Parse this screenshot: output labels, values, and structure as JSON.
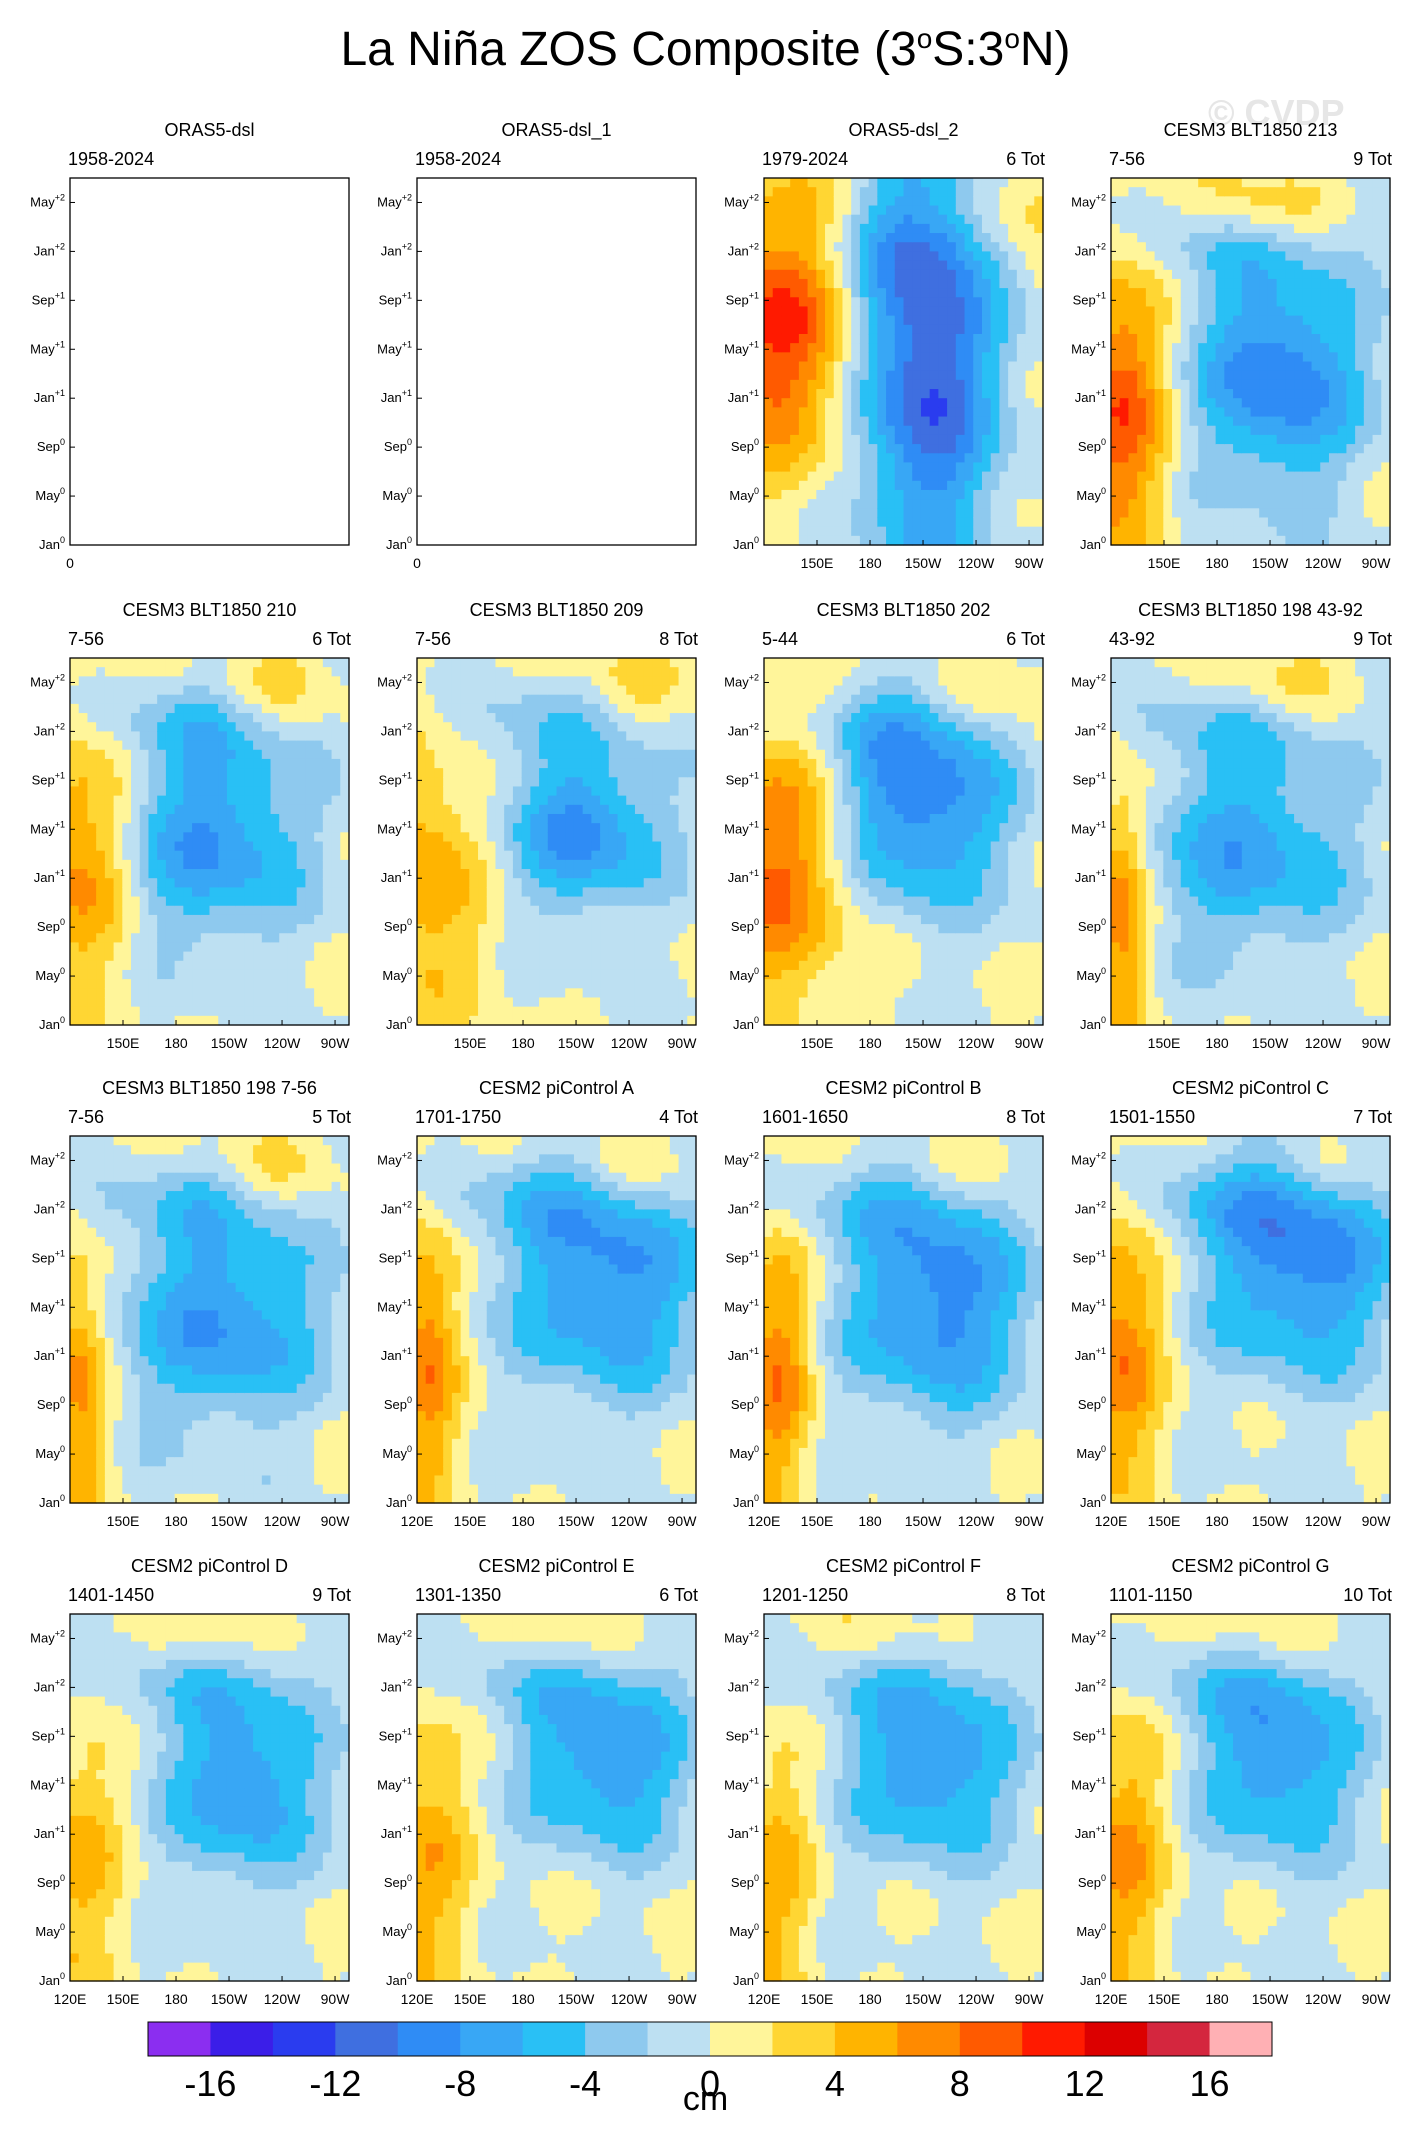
{
  "title": {
    "main": "La Niña ZOS Composite (3",
    "o1": "o",
    "mid": "S:3",
    "o2": "o",
    "end": "N)"
  },
  "watermark": "© CVDP",
  "chart_data": {
    "type": "heatmap",
    "variable": "ZOS",
    "units": "cm",
    "colorbar": {
      "labels": [
        "-16",
        "-12",
        "-8",
        "-4",
        "0",
        "4",
        "8",
        "12",
        "16"
      ],
      "colors": [
        "#8b2ef0",
        "#3b1ee8",
        "#2a3cef",
        "#3f6fe0",
        "#2f8cf5",
        "#38a7f5",
        "#29c0f5",
        "#8ec9ee",
        "#bde0f2",
        "#fff59a",
        "#ffd633",
        "#ffb400",
        "#ff8a00",
        "#ff5a00",
        "#ff1a00",
        "#dc0000",
        "#d4263e",
        "#ffb0b4"
      ],
      "label": "cm"
    },
    "y_ticks": [
      {
        "m": "Jan",
        "s": "0"
      },
      {
        "m": "May",
        "s": "0"
      },
      {
        "m": "Sep",
        "s": "0"
      },
      {
        "m": "Jan",
        "s": "+1"
      },
      {
        "m": "May",
        "s": "+1"
      },
      {
        "m": "Sep",
        "s": "+1"
      },
      {
        "m": "Jan",
        "s": "+2"
      },
      {
        "m": "May",
        "s": "+2"
      }
    ],
    "x_ticks_full": [
      "120E",
      "150E",
      "180",
      "150W",
      "120W",
      "90W"
    ],
    "x_ticks_partial": [
      "150E",
      "180",
      "150W",
      "120W",
      "90W"
    ],
    "x_ticks_empty": [
      "0"
    ],
    "panels": [
      {
        "name": "ORAS5-dsl",
        "period": "1958-2024",
        "count": "",
        "empty": true,
        "xt": "empty",
        "p": null
      },
      {
        "name": "ORAS5-dsl_1",
        "period": "1958-2024",
        "count": "",
        "empty": true,
        "xt": "empty",
        "p": null
      },
      {
        "name": "ORAS5-dsl_2",
        "period": "1979-2024",
        "count": "6 Tot",
        "empty": false,
        "xt": "partial",
        "p": [
          0.06,
          0.27,
          0.58,
          0.25,
          0.5,
          0.55,
          0.7,
          0.9,
          0.6,
          0.85
        ]
      },
      {
        "name": "CESM3 BLT1850 213",
        "period": "7-56",
        "count": "9 Tot",
        "empty": false,
        "xt": "partial",
        "p": [
          0.03,
          0.17,
          0.6,
          0.3,
          0.46,
          0.3,
          0.55,
          0.55,
          0.38,
          0.8
        ]
      },
      {
        "name": "CESM3 BLT1850 210",
        "period": "7-56",
        "count": "6 Tot",
        "empty": false,
        "xt": "partial",
        "p": [
          0.03,
          0.19,
          0.52,
          0.32,
          0.51,
          0.28,
          0.45,
          0.74,
          0.45,
          0.55
        ]
      },
      {
        "name": "CESM3 BLT1850 209",
        "period": "7-56",
        "count": "8 Tot",
        "empty": false,
        "xt": "partial",
        "p": [
          0.0,
          0.24,
          0.6,
          0.28,
          0.53,
          0.22,
          0.47,
          0.76,
          0.4,
          0.5
        ]
      },
      {
        "name": "CESM3 BLT1850 202",
        "period": "5-44",
        "count": "6 Tot",
        "empty": false,
        "xt": "partial",
        "p": [
          0.05,
          0.27,
          0.55,
          0.32,
          0.6,
          0.27,
          0.55,
          0.8,
          0.45,
          0.7
        ]
      },
      {
        "name": "CESM3 BLT1850 198 43-92",
        "period": "43-92",
        "count": "9 Tot",
        "empty": false,
        "xt": "partial",
        "p": [
          0.03,
          0.1,
          0.5,
          0.35,
          0.48,
          0.28,
          0.4,
          0.62,
          0.3,
          0.6
        ]
      },
      {
        "name": "CESM3 BLT1850 198 7-56",
        "period": "7-56",
        "count": "5 Tot",
        "empty": false,
        "xt": "partial",
        "p": [
          0.03,
          0.1,
          0.55,
          0.35,
          0.5,
          0.28,
          0.45,
          0.72,
          0.32,
          0.55
        ]
      },
      {
        "name": "CESM2 piControl A",
        "period": "1701-1750",
        "count": "4 Tot",
        "empty": false,
        "xt": "full",
        "p": [
          0.03,
          0.12,
          0.68,
          0.35,
          0.6,
          0.3,
          0.48,
          0.8,
          0.4,
          0.62
        ]
      },
      {
        "name": "CESM2 piControl B",
        "period": "1601-1650",
        "count": "8 Tot",
        "empty": false,
        "xt": "full",
        "p": [
          0.05,
          0.12,
          0.62,
          0.32,
          0.55,
          0.3,
          0.52,
          0.75,
          0.36,
          0.6
        ]
      },
      {
        "name": "CESM2 piControl C",
        "period": "1501-1550",
        "count": "7 Tot",
        "empty": false,
        "xt": "full",
        "p": [
          0.03,
          0.15,
          0.68,
          0.34,
          0.66,
          0.3,
          0.52,
          0.8,
          0.42,
          0.62
        ]
      },
      {
        "name": "CESM2 piControl D",
        "period": "1401-1450",
        "count": "9 Tot",
        "empty": false,
        "xt": "full",
        "p": [
          0.03,
          0.16,
          0.62,
          0.28,
          0.54,
          0.26,
          0.45,
          0.5,
          0.33,
          0.38
        ]
      },
      {
        "name": "CESM2 piControl E",
        "period": "1301-1350",
        "count": "6 Tot",
        "empty": false,
        "xt": "full",
        "p": [
          0.03,
          0.16,
          0.68,
          0.3,
          0.6,
          0.24,
          0.45,
          0.55,
          0.34,
          0.44
        ]
      },
      {
        "name": "CESM2 piControl F",
        "period": "1201-1250",
        "count": "8 Tot",
        "empty": false,
        "xt": "full",
        "p": [
          0.04,
          0.14,
          0.6,
          0.3,
          0.58,
          0.24,
          0.45,
          0.42,
          0.28,
          0.4
        ]
      },
      {
        "name": "CESM2 piControl G",
        "period": "1101-1150",
        "count": "10 Tot",
        "empty": false,
        "xt": "full",
        "p": [
          0.04,
          0.16,
          0.6,
          0.28,
          0.6,
          0.26,
          0.45,
          0.58,
          0.35,
          0.5
        ]
      }
    ]
  }
}
